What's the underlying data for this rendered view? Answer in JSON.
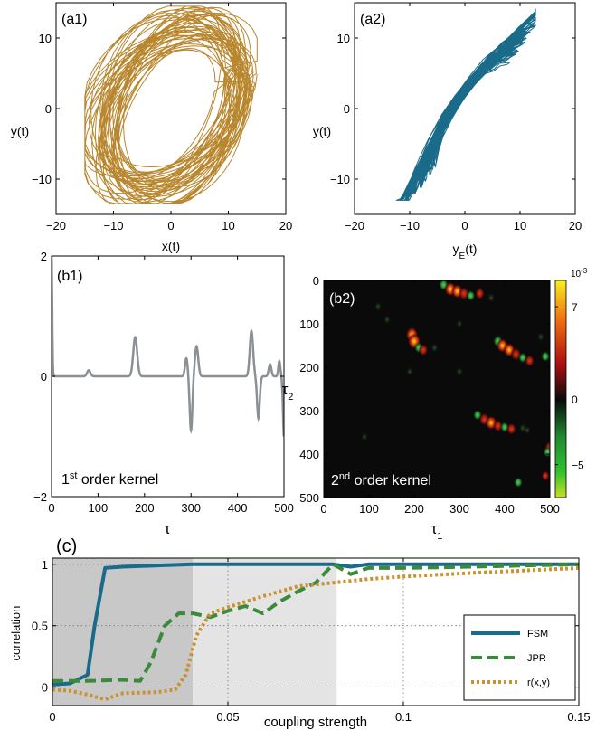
{
  "chart_data": [
    {
      "id": "a1",
      "type": "line",
      "panel_label": "(a1)",
      "xlabel": "x(t)",
      "ylabel": "y(t)",
      "xlim": [
        -20,
        20
      ],
      "ylim": [
        -15,
        15
      ],
      "xticks": [
        -20,
        -10,
        0,
        10,
        20
      ],
      "yticks": [
        -10,
        0,
        10
      ],
      "color": "#b8862d",
      "description_of_trace": "chaotic attractor trajectory filling roughly x in [-15,15], y in [-13,14]"
    },
    {
      "id": "a2",
      "type": "line",
      "panel_label": "(a2)",
      "xlabel": "y",
      "xlabel_sub": "E",
      "xlabel_tail": "(t)",
      "ylabel": "y(t)",
      "xlim": [
        -20,
        20
      ],
      "ylim": [
        -15,
        15
      ],
      "xticks": [
        -20,
        -10,
        0,
        10,
        20
      ],
      "yticks": [
        -10,
        0,
        10
      ],
      "color": "#1a6a8a",
      "description_of_trace": "trajectory concentrated along diagonal from (-12,-12.5) to (12.5,14)"
    },
    {
      "id": "b1",
      "type": "line",
      "panel_label": "(b1)",
      "annotation": "1",
      "annotation_sup": "st",
      "annotation_tail": " order kernel",
      "xlabel": "τ",
      "xlim": [
        0,
        500
      ],
      "ylim": [
        -2,
        2
      ],
      "xticks": [
        0,
        100,
        200,
        300,
        400,
        500
      ],
      "yticks": [
        -2,
        0,
        2
      ],
      "color": "#8a9095",
      "peaks": [
        {
          "x": 0,
          "y": 2.0,
          "w": 2
        },
        {
          "x": 80,
          "y": 0.1,
          "w": 5
        },
        {
          "x": 180,
          "y": 0.65,
          "w": 6
        },
        {
          "x": 290,
          "y": 0.3,
          "w": 4
        },
        {
          "x": 300,
          "y": -0.9,
          "w": 4
        },
        {
          "x": 312,
          "y": 0.5,
          "w": 5
        },
        {
          "x": 430,
          "y": 0.75,
          "w": 5
        },
        {
          "x": 445,
          "y": -0.7,
          "w": 4
        },
        {
          "x": 470,
          "y": 0.2,
          "w": 4
        },
        {
          "x": 490,
          "y": 0.25,
          "w": 3
        },
        {
          "x": 500,
          "y": -1.0,
          "w": 3
        }
      ]
    },
    {
      "id": "b2",
      "type": "heatmap",
      "panel_label": "(b2)",
      "annotation": "2",
      "annotation_sup": "nd",
      "annotation_tail": " order kernel",
      "xlabel": "τ",
      "xlabel_sub": "1",
      "ylabel": "τ",
      "ylabel_sub": "2",
      "xlim": [
        0,
        500
      ],
      "ylim": [
        500,
        0
      ],
      "xticks": [
        0,
        100,
        200,
        300,
        400,
        500
      ],
      "yticks": [
        0,
        100,
        200,
        300,
        400,
        500
      ],
      "colorbar": {
        "exponent_label": "10",
        "exponent_sup": "-3",
        "ticks": [
          7,
          0,
          -5
        ],
        "range": [
          -7.5,
          9
        ],
        "colors": [
          "#f8f020",
          "#f07010",
          "#b01010",
          "#0a0a0a",
          "#208a30",
          "#30c030",
          "#c8e020"
        ]
      },
      "blobs": [
        {
          "x": 195,
          "y": 125,
          "v": 8
        },
        {
          "x": 200,
          "y": 140,
          "v": 9
        },
        {
          "x": 210,
          "y": 155,
          "v": -4
        },
        {
          "x": 220,
          "y": 160,
          "v": 5
        },
        {
          "x": 245,
          "y": 155,
          "v": -3
        },
        {
          "x": 265,
          "y": 10,
          "v": -5
        },
        {
          "x": 280,
          "y": 20,
          "v": 7
        },
        {
          "x": 295,
          "y": 25,
          "v": 7
        },
        {
          "x": 310,
          "y": 30,
          "v": 6
        },
        {
          "x": 325,
          "y": 35,
          "v": -4
        },
        {
          "x": 345,
          "y": 30,
          "v": 5
        },
        {
          "x": 370,
          "y": 40,
          "v": -3
        },
        {
          "x": 140,
          "y": 90,
          "v": -3
        },
        {
          "x": 120,
          "y": 60,
          "v": -3
        },
        {
          "x": 385,
          "y": 140,
          "v": -5
        },
        {
          "x": 395,
          "y": 150,
          "v": 7
        },
        {
          "x": 410,
          "y": 160,
          "v": 7
        },
        {
          "x": 425,
          "y": 170,
          "v": 6
        },
        {
          "x": 440,
          "y": 178,
          "v": -4
        },
        {
          "x": 455,
          "y": 185,
          "v": 5
        },
        {
          "x": 480,
          "y": 130,
          "v": -3
        },
        {
          "x": 490,
          "y": 175,
          "v": -4
        },
        {
          "x": 300,
          "y": 210,
          "v": -3
        },
        {
          "x": 340,
          "y": 310,
          "v": -4
        },
        {
          "x": 355,
          "y": 320,
          "v": 6
        },
        {
          "x": 370,
          "y": 328,
          "v": 7
        },
        {
          "x": 385,
          "y": 335,
          "v": 5
        },
        {
          "x": 400,
          "y": 338,
          "v": -4
        },
        {
          "x": 415,
          "y": 342,
          "v": 5
        },
        {
          "x": 440,
          "y": 340,
          "v": -3
        },
        {
          "x": 450,
          "y": 345,
          "v": -2
        },
        {
          "x": 90,
          "y": 360,
          "v": -2
        },
        {
          "x": 500,
          "y": 385,
          "v": 6
        },
        {
          "x": 495,
          "y": 395,
          "v": -4
        },
        {
          "x": 430,
          "y": 465,
          "v": -4
        },
        {
          "x": 490,
          "y": 450,
          "v": 3
        },
        {
          "x": 190,
          "y": 210,
          "v": -2
        },
        {
          "x": 300,
          "y": 100,
          "v": -2
        }
      ]
    },
    {
      "id": "c",
      "type": "line",
      "panel_label": "(c)",
      "xlabel": "coupling strength",
      "ylabel": "correlation",
      "xlim": [
        0,
        0.15
      ],
      "ylim": [
        -0.15,
        1.05
      ],
      "xticks": [
        0,
        0.05,
        0.1,
        0.15
      ],
      "xtick_labels": [
        "0",
        "0.05",
        "0.1",
        "0.15"
      ],
      "yticks": [
        0,
        0.5,
        1
      ],
      "shaded_regions": [
        {
          "x0": 0,
          "x1": 0.04,
          "color": "#c8c8c8"
        },
        {
          "x0": 0.04,
          "x1": 0.081,
          "color": "#e4e4e4"
        }
      ],
      "legend": {
        "placement": "bottom-right"
      },
      "series": [
        {
          "name": "FSM",
          "color": "#1a6a8a",
          "dash": "solid",
          "x": [
            0,
            0.005,
            0.01,
            0.012,
            0.015,
            0.02,
            0.03,
            0.04,
            0.05,
            0.07,
            0.08,
            0.085,
            0.09,
            0.1,
            0.12,
            0.15
          ],
          "y": [
            0.02,
            0.03,
            0.1,
            0.5,
            0.97,
            0.98,
            0.99,
            1.0,
            1.0,
            1.0,
            1.0,
            0.98,
            1.0,
            1.0,
            1.0,
            1.0
          ]
        },
        {
          "name": "JPR",
          "color": "#3a8a3a",
          "dash": "dashed",
          "x": [
            0,
            0.01,
            0.02,
            0.025,
            0.028,
            0.032,
            0.036,
            0.04,
            0.045,
            0.05,
            0.055,
            0.06,
            0.065,
            0.07,
            0.075,
            0.08,
            0.085,
            0.09,
            0.1,
            0.12,
            0.15
          ],
          "y": [
            0.05,
            0.05,
            0.06,
            0.05,
            0.2,
            0.5,
            0.6,
            0.6,
            0.57,
            0.62,
            0.66,
            0.6,
            0.7,
            0.78,
            0.85,
            1.0,
            0.92,
            0.97,
            0.97,
            0.98,
            1.0
          ]
        },
        {
          "name": "r(x,y)",
          "color": "#c9922e",
          "dash": "dotted",
          "x": [
            0,
            0.005,
            0.01,
            0.015,
            0.02,
            0.03,
            0.035,
            0.038,
            0.041,
            0.045,
            0.05,
            0.06,
            0.07,
            0.08,
            0.09,
            0.1,
            0.12,
            0.15
          ],
          "y": [
            -0.02,
            -0.03,
            -0.06,
            -0.1,
            -0.05,
            -0.04,
            -0.02,
            0.1,
            0.42,
            0.6,
            0.65,
            0.74,
            0.82,
            0.85,
            0.88,
            0.9,
            0.93,
            0.97
          ]
        }
      ]
    }
  ]
}
